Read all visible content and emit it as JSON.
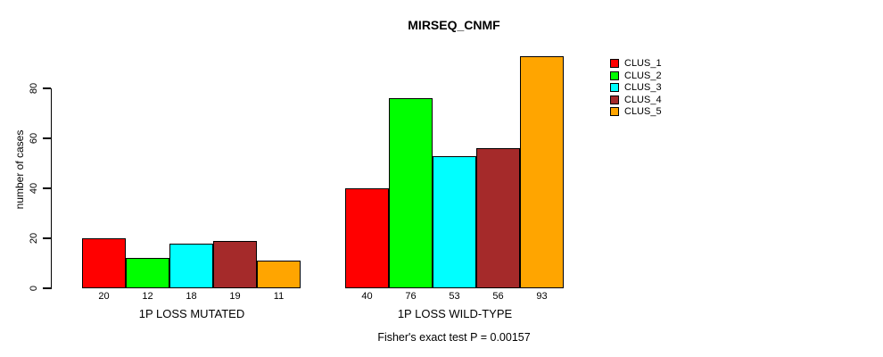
{
  "chart_data": {
    "type": "bar",
    "title": "MIRSEQ_CNMF",
    "ylabel": "number of cases",
    "xlabel": "",
    "ylim": [
      0,
      93
    ],
    "yticks": [
      0,
      20,
      40,
      60,
      80
    ],
    "grid": false,
    "legend_position": "right",
    "categories": [
      "1P LOSS MUTATED",
      "1P LOSS WILD-TYPE"
    ],
    "groups": [
      {
        "label": "1P LOSS MUTATED",
        "values": [
          20,
          12,
          18,
          19,
          11
        ]
      },
      {
        "label": "1P LOSS WILD-TYPE",
        "values": [
          40,
          76,
          53,
          56,
          93
        ]
      }
    ],
    "series": [
      {
        "name": "CLUS_1",
        "color": "#FF0000",
        "values": [
          20,
          40
        ]
      },
      {
        "name": "CLUS_2",
        "color": "#00FF00",
        "values": [
          12,
          76
        ]
      },
      {
        "name": "CLUS_3",
        "color": "#00FFFF",
        "values": [
          18,
          53
        ]
      },
      {
        "name": "CLUS_4",
        "color": "#A52A2A",
        "values": [
          19,
          56
        ]
      },
      {
        "name": "CLUS_5",
        "color": "#FFA500",
        "values": [
          11,
          93
        ]
      }
    ],
    "legend": [
      {
        "label": "CLUS_1",
        "color": "#FF0000"
      },
      {
        "label": "CLUS_2",
        "color": "#00FF00"
      },
      {
        "label": "CLUS_3",
        "color": "#00FFFF"
      },
      {
        "label": "CLUS_4",
        "color": "#A52A2A"
      },
      {
        "label": "CLUS_5",
        "color": "#FFA500"
      }
    ],
    "caption": "Fisher's exact test P = 0.00157",
    "axis_color": "#000000",
    "background_color": "#FFFFFF"
  }
}
